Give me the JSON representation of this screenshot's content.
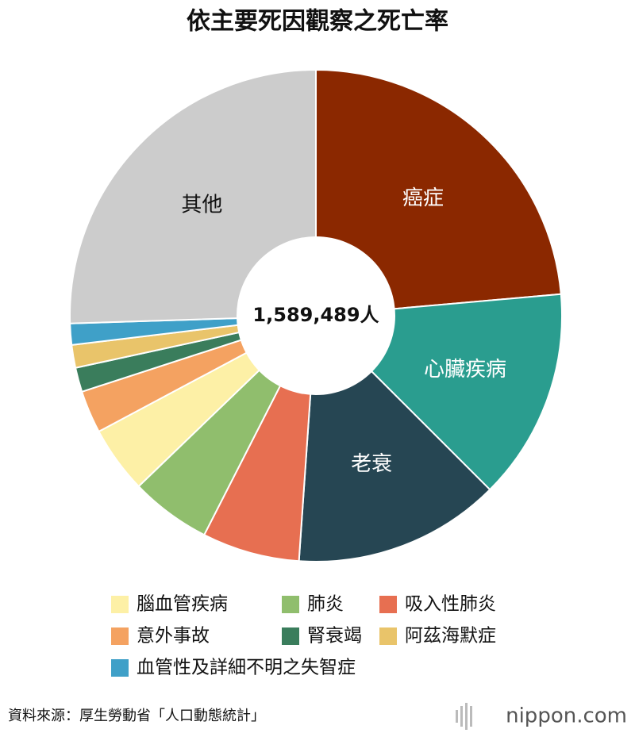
{
  "chart_data": {
    "type": "donut",
    "title": "依主要死因觀察之死亡率",
    "center_label": "1,589,489人",
    "categories": [
      "癌症",
      "心臟疾病",
      "老衰",
      "吸入性肺炎",
      "肺炎",
      "腦血管疾病",
      "意外事故",
      "腎衰竭",
      "阿茲海默症",
      "血管性及詳細不明之失智症",
      "其他"
    ],
    "values": [
      23.6,
      13.9,
      13.6,
      6.4,
      5.3,
      4.4,
      2.8,
      1.6,
      1.5,
      1.4,
      25.5
    ],
    "colors": [
      "#8b2800",
      "#2a9d8f",
      "#264653",
      "#e76f51",
      "#90be6d",
      "#fdf0a6",
      "#f4a261",
      "#3a7d5c",
      "#e9c46a",
      "#3fa0c8",
      "#cccccc"
    ],
    "source": "資料來源：厚生勞動省「人口動態統計」",
    "brand": "nippon.com"
  }
}
